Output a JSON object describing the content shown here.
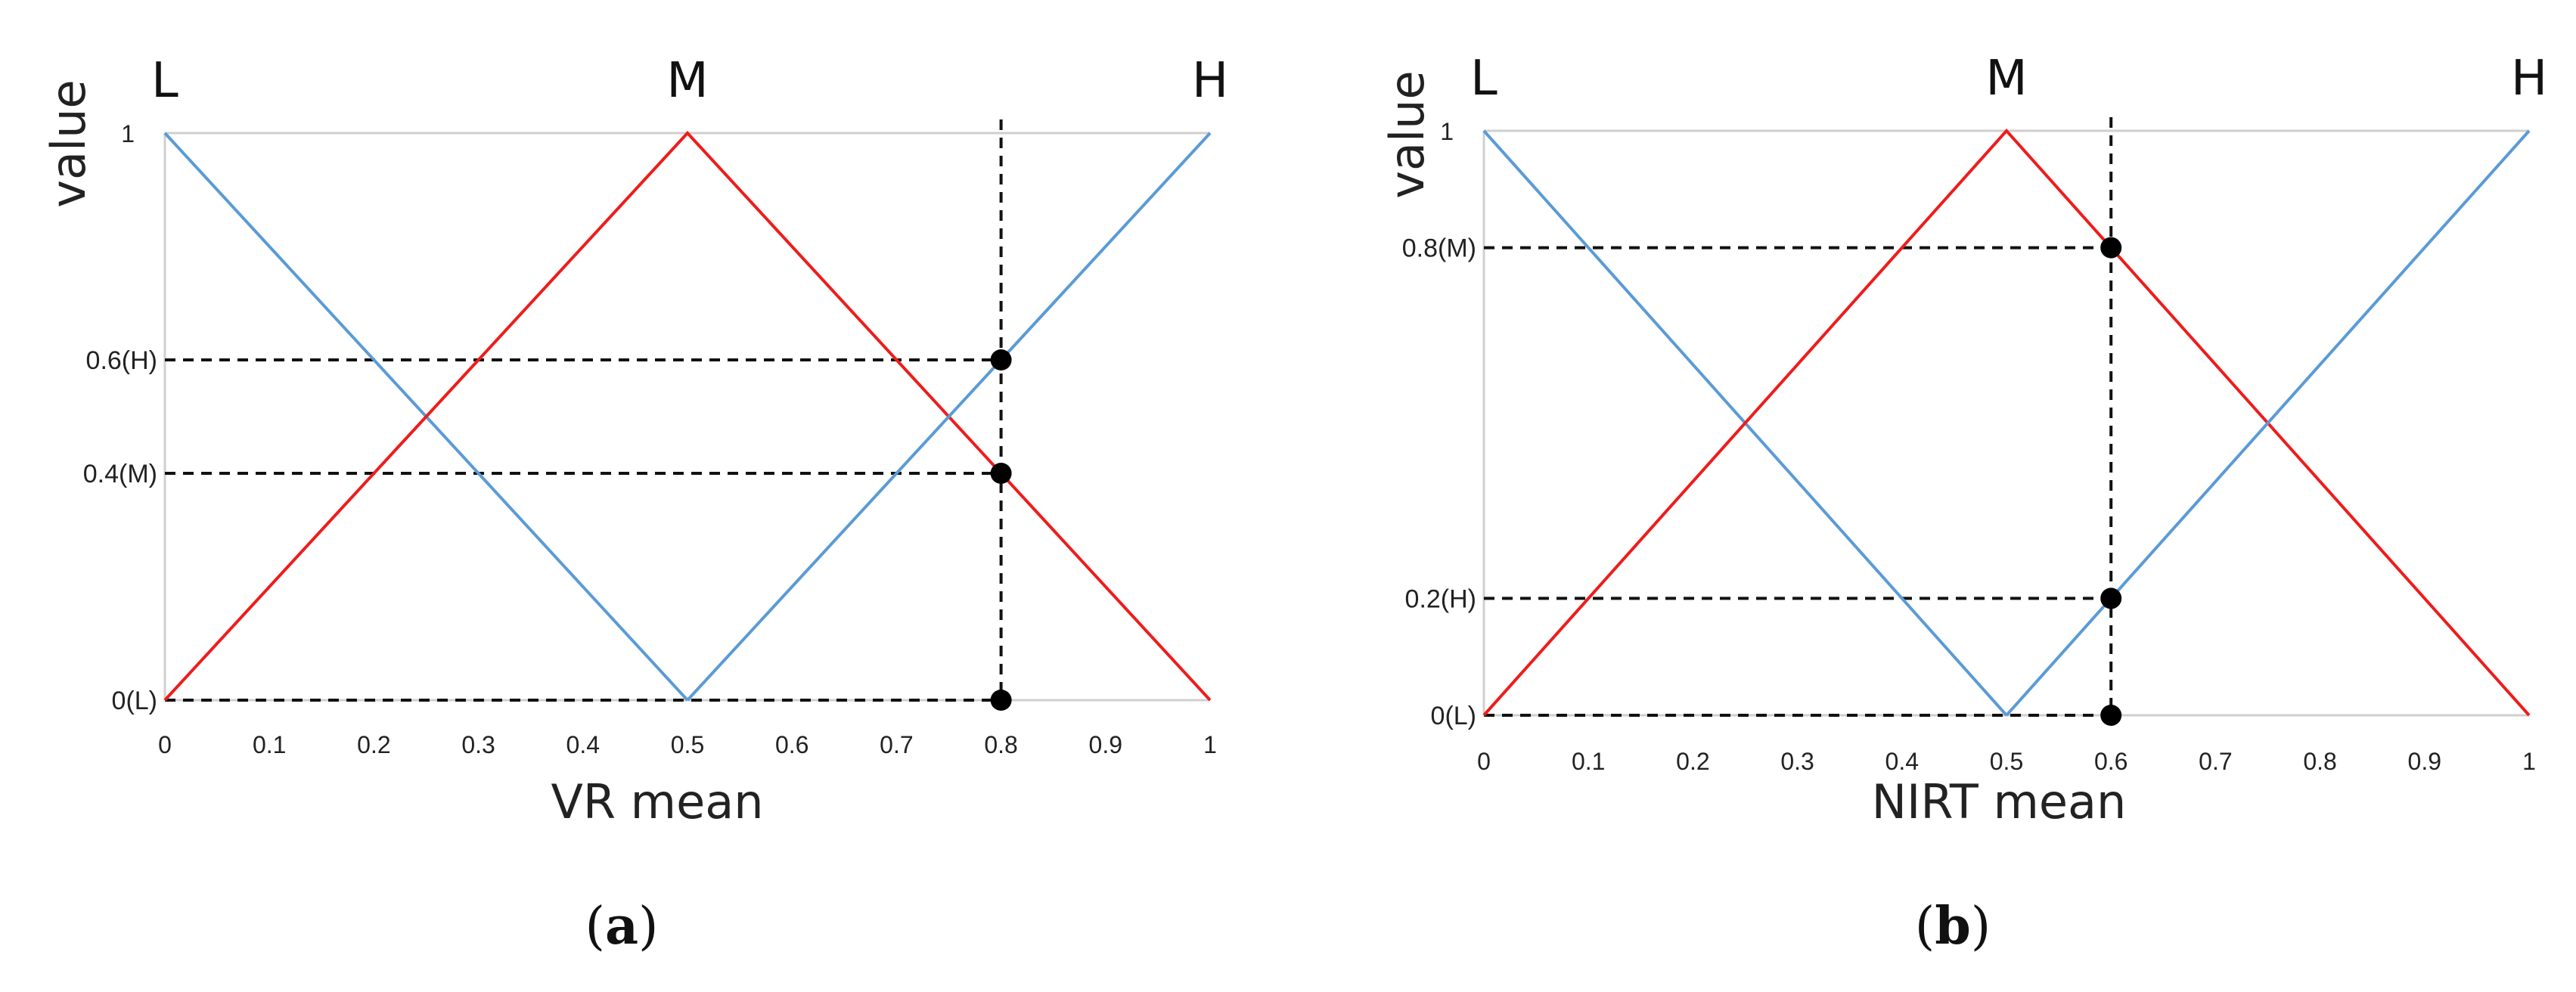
{
  "chart_data": [
    {
      "type": "line",
      "panel_label": "a",
      "xlabel": "VR mean",
      "ylabel": "value",
      "x_ticks": [
        "0",
        "0.1",
        "0.2",
        "0.3",
        "0.4",
        "0.5",
        "0.6",
        "0.7",
        "0.8",
        "0.9",
        "1"
      ],
      "xlim": [
        0,
        1
      ],
      "ylim": [
        0,
        1
      ],
      "y_ticks": [
        {
          "value": 1,
          "label": "1"
        },
        {
          "value": 0.6,
          "label": "0.6(H)"
        },
        {
          "value": 0.4,
          "label": "0.4(M)"
        },
        {
          "value": 0,
          "label": "0(L)"
        }
      ],
      "set_labels": [
        {
          "x": 0,
          "label": "L"
        },
        {
          "x": 0.5,
          "label": "M"
        },
        {
          "x": 1,
          "label": "H"
        }
      ],
      "series": [
        {
          "key": "L",
          "color": "#5b9bd5",
          "x": [
            0,
            0.5
          ],
          "y": [
            1,
            0
          ]
        },
        {
          "key": "M",
          "color": "#ee1c1c",
          "x": [
            0,
            0.5,
            1
          ],
          "y": [
            0,
            1,
            0
          ]
        },
        {
          "key": "H",
          "color": "#5b9bd5",
          "x": [
            0.5,
            1
          ],
          "y": [
            0,
            1
          ]
        }
      ],
      "marker_x": 0.8,
      "markers": [
        {
          "x": 0.8,
          "y": 0.6
        },
        {
          "x": 0.8,
          "y": 0.4
        },
        {
          "x": 0.8,
          "y": 0
        }
      ],
      "grid": false
    },
    {
      "type": "line",
      "panel_label": "b",
      "xlabel": "NIRT mean",
      "ylabel": "value",
      "x_ticks": [
        "0",
        "0.1",
        "0.2",
        "0.3",
        "0.4",
        "0.5",
        "0.6",
        "0.7",
        "0.8",
        "0.9",
        "1"
      ],
      "xlim": [
        0,
        1
      ],
      "ylim": [
        0,
        1
      ],
      "y_ticks": [
        {
          "value": 1,
          "label": "1"
        },
        {
          "value": 0.8,
          "label": "0.8(M)"
        },
        {
          "value": 0.2,
          "label": "0.2(H)"
        },
        {
          "value": 0,
          "label": "0(L)"
        }
      ],
      "set_labels": [
        {
          "x": 0,
          "label": "L"
        },
        {
          "x": 0.5,
          "label": "M"
        },
        {
          "x": 1,
          "label": "H"
        }
      ],
      "series": [
        {
          "key": "L",
          "color": "#5b9bd5",
          "x": [
            0,
            0.5
          ],
          "y": [
            1,
            0
          ]
        },
        {
          "key": "M",
          "color": "#ee1c1c",
          "x": [
            0,
            0.5,
            1
          ],
          "y": [
            0,
            1,
            0
          ]
        },
        {
          "key": "H",
          "color": "#5b9bd5",
          "x": [
            0.5,
            1
          ],
          "y": [
            0,
            1
          ]
        }
      ],
      "marker_x": 0.6,
      "markers": [
        {
          "x": 0.6,
          "y": 0.8
        },
        {
          "x": 0.6,
          "y": 0.2
        },
        {
          "x": 0.6,
          "y": 0
        }
      ],
      "grid": false
    }
  ]
}
